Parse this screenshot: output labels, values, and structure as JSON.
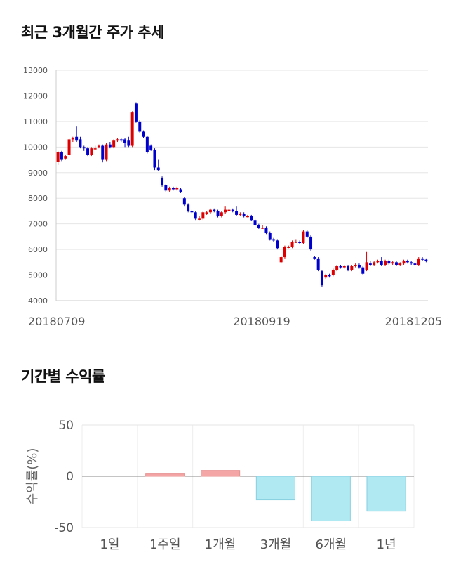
{
  "sections": {
    "price_title": "최근 3개월간 주가 추세",
    "return_title": "기간별 수익률"
  },
  "chart_data": [
    {
      "type": "candlestick",
      "title": "최근 3개월간 주가 추세",
      "ylim": [
        4000,
        13000
      ],
      "y_ticks": [
        "13000",
        "12000",
        "11000",
        "10000",
        "9000",
        "8000",
        "7000",
        "6000",
        "5000",
        "4000"
      ],
      "x_tick_labels": [
        "20180709",
        "20180919",
        "20181205"
      ],
      "grid": true,
      "up_color": "#dd0000",
      "down_color": "#0000cc",
      "candles": [
        [
          9420,
          9800,
          9300,
          9850
        ],
        [
          9800,
          9500,
          9450,
          9850
        ],
        [
          9550,
          9650,
          9500,
          9700
        ],
        [
          9700,
          10300,
          9650,
          10350
        ],
        [
          10300,
          10350,
          10200,
          10400
        ],
        [
          10400,
          10250,
          10200,
          10800
        ],
        [
          10300,
          10000,
          9950,
          10400
        ],
        [
          10000,
          9950,
          9850,
          10050
        ],
        [
          9950,
          9700,
          9650,
          10000
        ],
        [
          9700,
          9950,
          9650,
          10000
        ],
        [
          9950,
          9950,
          9900,
          10050
        ],
        [
          10000,
          10050,
          9950,
          10100
        ],
        [
          10050,
          9500,
          9400,
          10100
        ],
        [
          9500,
          10100,
          9450,
          10150
        ],
        [
          10100,
          10000,
          9950,
          10200
        ],
        [
          10000,
          10250,
          9950,
          10300
        ],
        [
          10250,
          10300,
          10200,
          10350
        ],
        [
          10300,
          10250,
          10200,
          10350
        ],
        [
          10300,
          10150,
          10000,
          10350
        ],
        [
          10250,
          10050,
          10000,
          10400
        ],
        [
          10050,
          11350,
          10000,
          11400
        ],
        [
          11700,
          11000,
          10950,
          11750
        ],
        [
          11000,
          10600,
          10550,
          11050
        ],
        [
          10600,
          10400,
          10350,
          10650
        ],
        [
          10400,
          9800,
          9750,
          10450
        ],
        [
          10050,
          9900,
          9850,
          10100
        ],
        [
          9900,
          9200,
          9100,
          9950
        ],
        [
          9200,
          9100,
          9050,
          9500
        ],
        [
          8800,
          8500,
          8450,
          8850
        ],
        [
          8500,
          8300,
          8250,
          8550
        ],
        [
          8300,
          8400,
          8250,
          8450
        ],
        [
          8400,
          8350,
          8300,
          8450
        ],
        [
          8350,
          8400,
          8300,
          8450
        ],
        [
          8350,
          8250,
          8200,
          8400
        ],
        [
          8000,
          7750,
          7700,
          8050
        ],
        [
          7750,
          7500,
          7450,
          7800
        ],
        [
          7500,
          7450,
          7400,
          7550
        ],
        [
          7450,
          7200,
          7150,
          7500
        ],
        [
          7200,
          7200,
          7150,
          7300
        ],
        [
          7200,
          7450,
          7150,
          7500
        ],
        [
          7400,
          7450,
          7350,
          7500
        ],
        [
          7450,
          7550,
          7400,
          7600
        ],
        [
          7550,
          7500,
          7450,
          7600
        ],
        [
          7500,
          7300,
          7250,
          7550
        ],
        [
          7300,
          7450,
          7250,
          7500
        ],
        [
          7450,
          7550,
          7400,
          7700
        ],
        [
          7550,
          7550,
          7500,
          7600
        ],
        [
          7550,
          7500,
          7450,
          7600
        ],
        [
          7500,
          7350,
          7300,
          7700
        ],
        [
          7350,
          7400,
          7300,
          7450
        ],
        [
          7400,
          7300,
          7250,
          7450
        ],
        [
          7300,
          7300,
          7250,
          7350
        ],
        [
          7300,
          7150,
          7100,
          7350
        ],
        [
          7150,
          6950,
          6900,
          7200
        ],
        [
          6950,
          6850,
          6800,
          7000
        ],
        [
          6850,
          6850,
          6800,
          6950
        ],
        [
          6850,
          6650,
          6600,
          6900
        ],
        [
          6650,
          6400,
          6350,
          6700
        ],
        [
          6400,
          6350,
          6300,
          6450
        ],
        [
          6350,
          6050,
          6000,
          6400
        ],
        [
          5500,
          5700,
          5450,
          5750
        ],
        [
          5700,
          6100,
          5650,
          6150
        ],
        [
          6100,
          6100,
          6050,
          6150
        ],
        [
          6100,
          6300,
          6050,
          6350
        ],
        [
          6300,
          6300,
          6250,
          6400
        ],
        [
          6300,
          6250,
          6200,
          6350
        ],
        [
          6250,
          6700,
          6200,
          6750
        ],
        [
          6700,
          6500,
          6450,
          6750
        ],
        [
          6500,
          6000,
          5950,
          6550
        ],
        [
          5700,
          5650,
          5600,
          5750
        ],
        [
          5650,
          5200,
          5150,
          5700
        ],
        [
          5150,
          4600,
          4550,
          5200
        ],
        [
          4900,
          5000,
          4850,
          5050
        ],
        [
          5000,
          4950,
          4900,
          5050
        ],
        [
          5000,
          5200,
          4950,
          5250
        ],
        [
          5200,
          5350,
          5150,
          5400
        ],
        [
          5350,
          5300,
          5250,
          5400
        ],
        [
          5300,
          5350,
          5250,
          5400
        ],
        [
          5350,
          5200,
          5150,
          5400
        ],
        [
          5200,
          5350,
          5150,
          5400
        ],
        [
          5350,
          5400,
          5300,
          5450
        ],
        [
          5400,
          5300,
          5250,
          5450
        ],
        [
          5300,
          5050,
          5000,
          5350
        ],
        [
          5200,
          5500,
          5150,
          5900
        ],
        [
          5450,
          5400,
          5350,
          5550
        ],
        [
          5400,
          5500,
          5350,
          5550
        ],
        [
          5500,
          5550,
          5450,
          5600
        ],
        [
          5550,
          5400,
          5350,
          5700
        ],
        [
          5400,
          5550,
          5350,
          5600
        ],
        [
          5550,
          5450,
          5400,
          5600
        ],
        [
          5450,
          5500,
          5400,
          5550
        ],
        [
          5500,
          5400,
          5350,
          5550
        ],
        [
          5400,
          5450,
          5350,
          5500
        ],
        [
          5450,
          5550,
          5400,
          5600
        ],
        [
          5550,
          5500,
          5450,
          5600
        ],
        [
          5500,
          5450,
          5400,
          5550
        ],
        [
          5450,
          5400,
          5350,
          5500
        ],
        [
          5400,
          5650,
          5350,
          5700
        ],
        [
          5650,
          5600,
          5550,
          5700
        ],
        [
          5600,
          5550,
          5500,
          5650
        ]
      ]
    },
    {
      "type": "bar",
      "title": "기간별 수익률",
      "ylabel": "수익률(%)",
      "categories": [
        "1일",
        "1주일",
        "1개월",
        "3개월",
        "6개월",
        "1년"
      ],
      "values": [
        0,
        2.3,
        5.7,
        -23.0,
        -43.5,
        -34.0
      ],
      "ylim": [
        -50,
        50
      ],
      "y_ticks": [
        "50",
        "0",
        "-50"
      ],
      "grid": true,
      "positive_color": "#f4a6a6",
      "negative_color": "#b1e9f3"
    }
  ]
}
